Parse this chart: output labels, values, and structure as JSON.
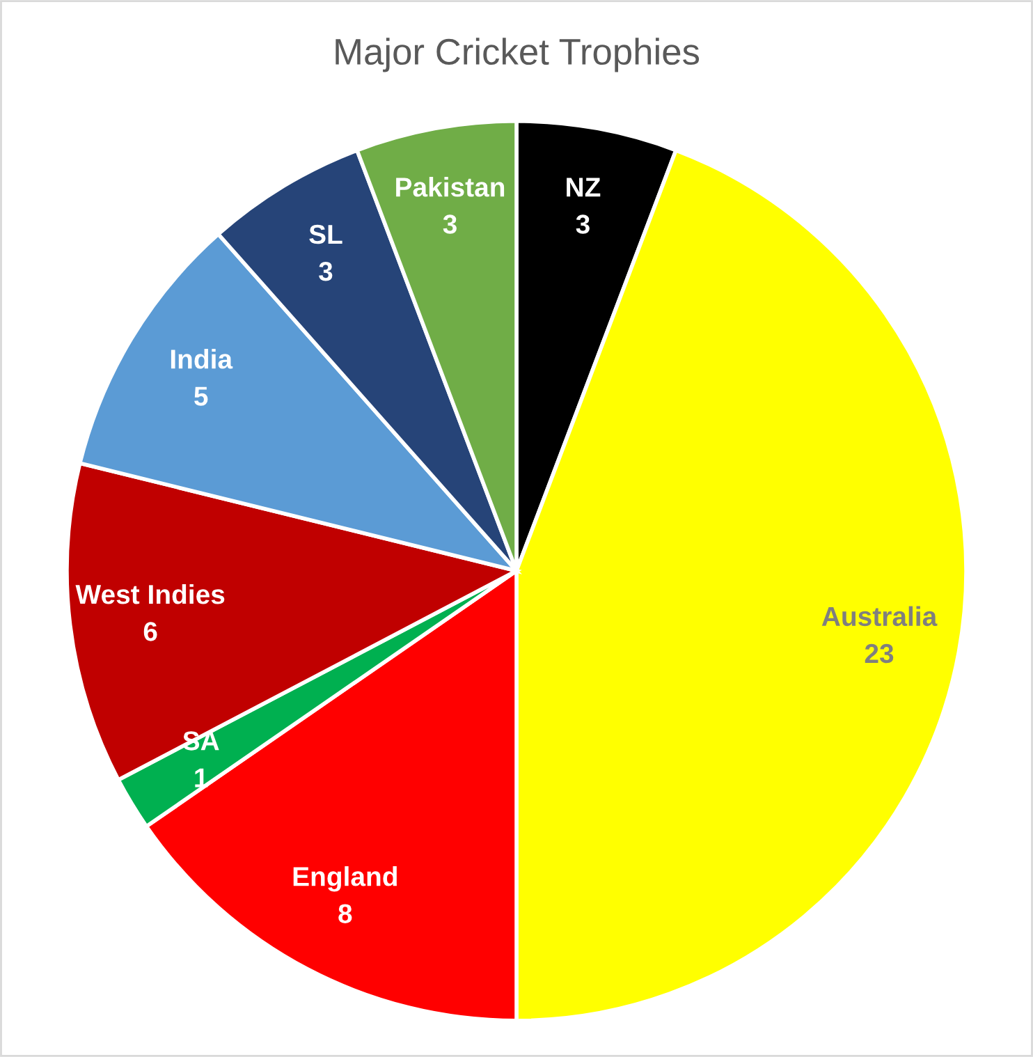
{
  "chart_data": {
    "type": "pie",
    "title": "Major Cricket Trophies",
    "categories": [
      "NZ",
      "Australia",
      "England",
      "SA",
      "West Indies",
      "India",
      "SL",
      "Pakistan"
    ],
    "values": [
      3,
      23,
      8,
      1,
      6,
      5,
      3,
      3
    ],
    "colors": [
      "#000000",
      "#ffff00",
      "#ff0000",
      "#00b050",
      "#c00000",
      "#5b9bd5",
      "#264478",
      "#70ad47"
    ],
    "data_labels": true,
    "legend": false
  }
}
